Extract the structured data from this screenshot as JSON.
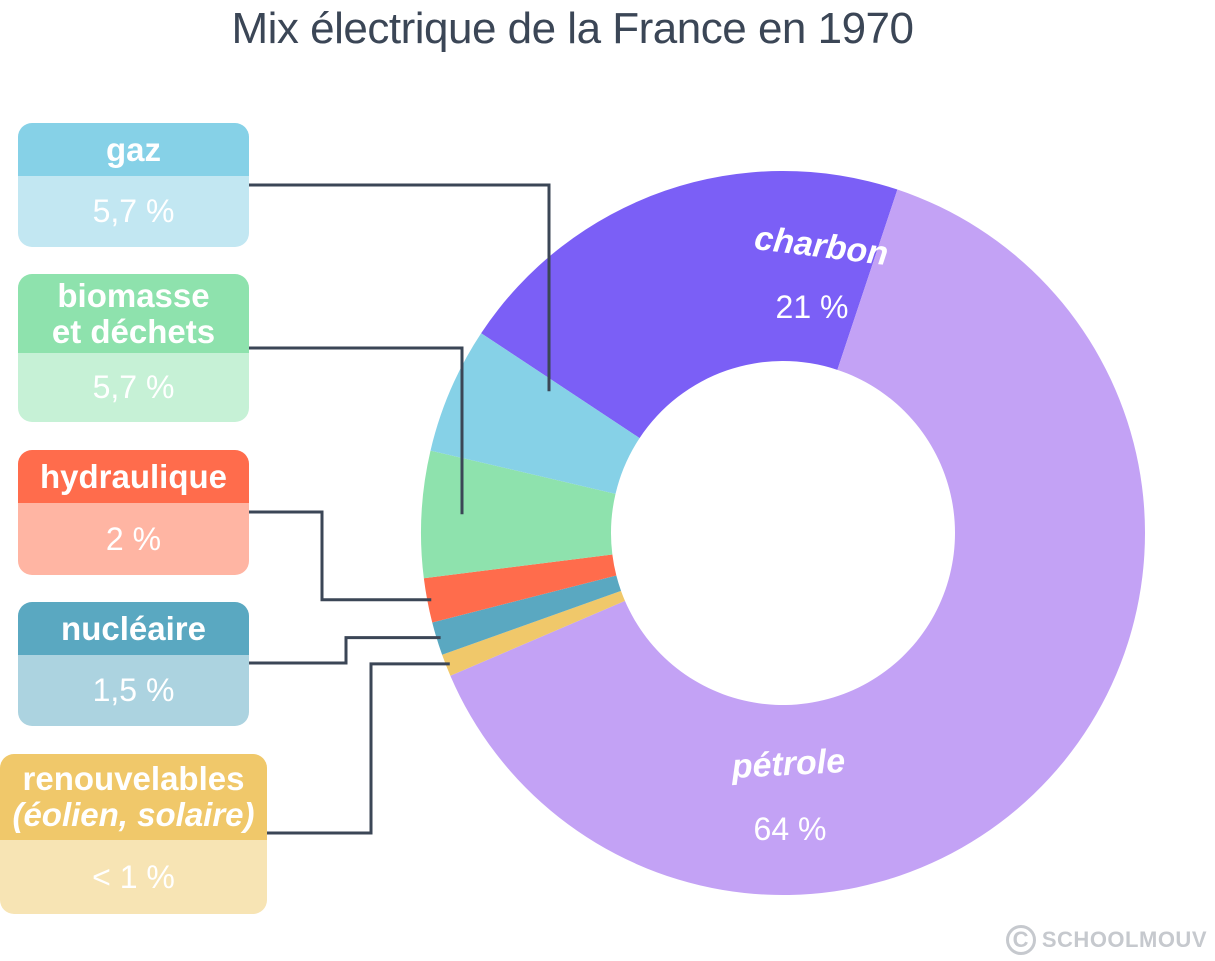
{
  "title": "Mix électrique de la France en 1970",
  "watermark": {
    "symbol": "C",
    "text": "SCHOOLMOUV"
  },
  "chart_data": {
    "type": "pie",
    "variant": "donut",
    "title": "Mix électrique de la France en 1970",
    "unit": "%",
    "slices": [
      {
        "label": "charbon",
        "value_text": "21 %",
        "value": 21,
        "color": "#7b5ff6"
      },
      {
        "label": "pétrole",
        "value_text": "64 %",
        "value": 64,
        "color": "#c3a2f5"
      },
      {
        "label": "renouvelables (éolien, solaire)",
        "value_text": "< 1 %",
        "value": 1,
        "color": "#f0c86a"
      },
      {
        "label": "nucléaire",
        "value_text": "1,5 %",
        "value": 1.5,
        "color": "#5aa8c1"
      },
      {
        "label": "hydraulique",
        "value_text": "2 %",
        "value": 2,
        "color": "#ff6c4c"
      },
      {
        "label": "biomasse et déchets",
        "value_text": "5,7 %",
        "value": 5.7,
        "color": "#8ee2ad"
      },
      {
        "label": "gaz",
        "value_text": "5,7 %",
        "value": 5.7,
        "color": "#86d1e7"
      }
    ]
  },
  "legend": [
    {
      "lines": [
        "gaz"
      ],
      "value": "5,7 %",
      "head_color": "#86d1e7",
      "body_color": "#c2e7f2"
    },
    {
      "lines": [
        "biomasse",
        "et déchets"
      ],
      "value": "5,7 %",
      "head_color": "#8ee2ad",
      "body_color": "#c6f1d6"
    },
    {
      "lines": [
        "hydraulique"
      ],
      "value": "2 %",
      "head_color": "#ff6c4c",
      "body_color": "#ffb5a3"
    },
    {
      "lines": [
        "nucléaire"
      ],
      "value": "1,5 %",
      "head_color": "#5aa8c1",
      "body_color": "#acd3e0"
    },
    {
      "lines": [
        "renouvelables",
        "(éolien, solaire)"
      ],
      "value": "< 1 %",
      "head_color": "#f0c86a",
      "body_color": "#f7e4b4"
    }
  ],
  "in_chart_labels": [
    {
      "label": "charbon",
      "value": "21 %"
    },
    {
      "label": "pétrole",
      "value": "64 %"
    }
  ]
}
